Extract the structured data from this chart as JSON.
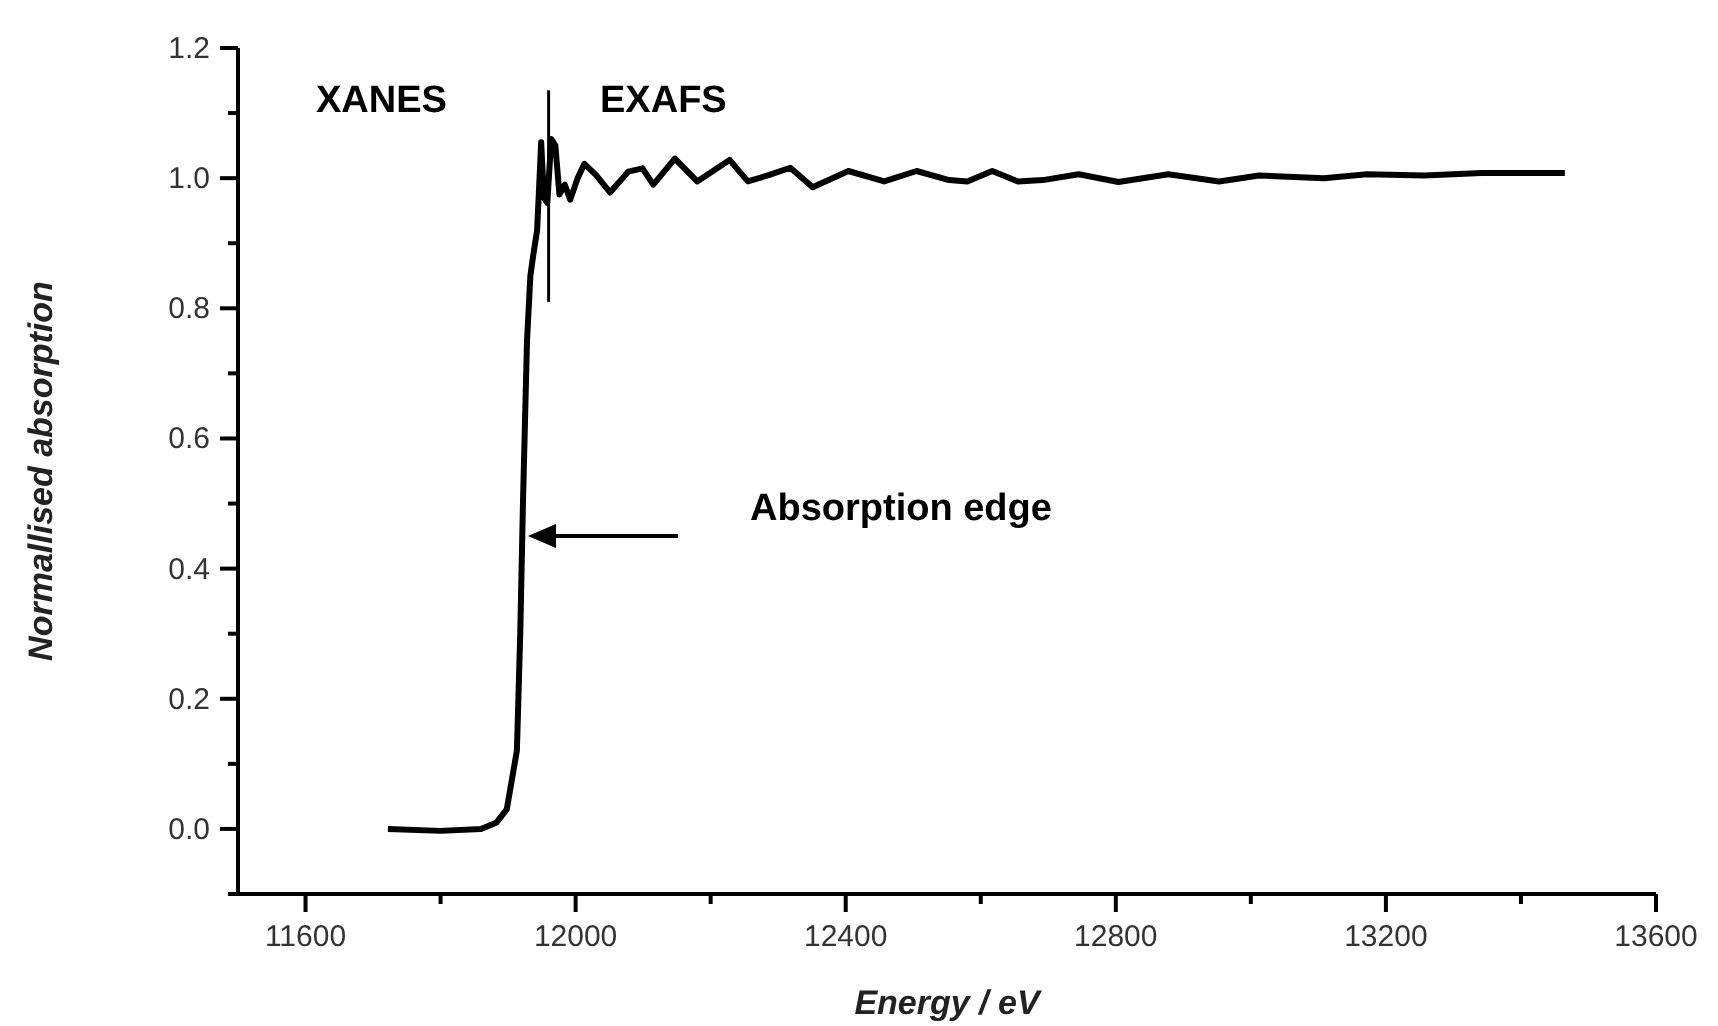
{
  "chart_data": {
    "type": "line",
    "xlabel": "Energy / eV",
    "ylabel": "Normallised absorption",
    "x": [
      11722,
      11800,
      11860,
      11883,
      11898,
      11913,
      11918,
      11922,
      11928,
      11933,
      11937,
      11943,
      11949,
      11953,
      11958,
      11964,
      11970,
      11976,
      11984,
      11992,
      12003,
      12013,
      12030,
      12051,
      12078,
      12099,
      12115,
      12147,
      12180,
      12228,
      12255,
      12287,
      12318,
      12351,
      12404,
      12457,
      12505,
      12553,
      12580,
      12617,
      12655,
      12692,
      12745,
      12804,
      12878,
      12953,
      13012,
      13108,
      13172,
      13257,
      13342,
      13465
    ],
    "series": [
      {
        "color": "#000000",
        "values": [
          0.0,
          -0.003,
          0.0,
          0.01,
          0.03,
          0.12,
          0.3,
          0.5,
          0.75,
          0.85,
          0.88,
          0.92,
          1.055,
          0.97,
          0.962,
          1.06,
          1.05,
          0.975,
          0.99,
          0.967,
          1.0,
          1.022,
          1.005,
          0.978,
          1.01,
          1.015,
          0.99,
          1.03,
          0.995,
          1.028,
          0.995,
          1.005,
          1.016,
          0.986,
          1.011,
          0.995,
          1.011,
          0.997,
          0.995,
          1.011,
          0.995,
          0.997,
          1.006,
          0.994,
          1.006,
          0.995,
          1.004,
          1.0,
          1.006,
          1.004,
          1.008,
          1.008
        ]
      }
    ],
    "xlim": [
      11500,
      13600
    ],
    "xticks": [
      11600,
      {
        "value": 11800,
        "label": null
      },
      12000,
      {
        "value": 12200,
        "label": null
      },
      12400,
      {
        "value": 12600,
        "label": null
      },
      12800,
      {
        "value": 13000,
        "label": null
      },
      13200,
      {
        "value": 13400,
        "label": null
      },
      13600
    ],
    "ylim": [
      -0.1,
      1.2
    ],
    "yticks": [
      {
        "value": -0.1,
        "label": null
      },
      {
        "value": 0,
        "label": "0.0"
      },
      {
        "value": 0.1,
        "label": null
      },
      0.2,
      {
        "value": 0.3,
        "label": null
      },
      0.4,
      {
        "value": 0.5,
        "label": null
      },
      0.6,
      {
        "value": 0.7,
        "label": null
      },
      0.8,
      {
        "value": 0.9,
        "label": null
      },
      {
        "value": 1,
        "label": "1.0"
      },
      {
        "value": 1.1,
        "label": null
      },
      1.2
    ],
    "ref_lines": [
      {
        "axis": "x",
        "value": 11960,
        "label": null,
        "color": "#000000"
      }
    ],
    "annotations": [
      "XANES",
      "EXAFS",
      "Absorption edge"
    ],
    "marker": "none",
    "line_style": "solid"
  }
}
